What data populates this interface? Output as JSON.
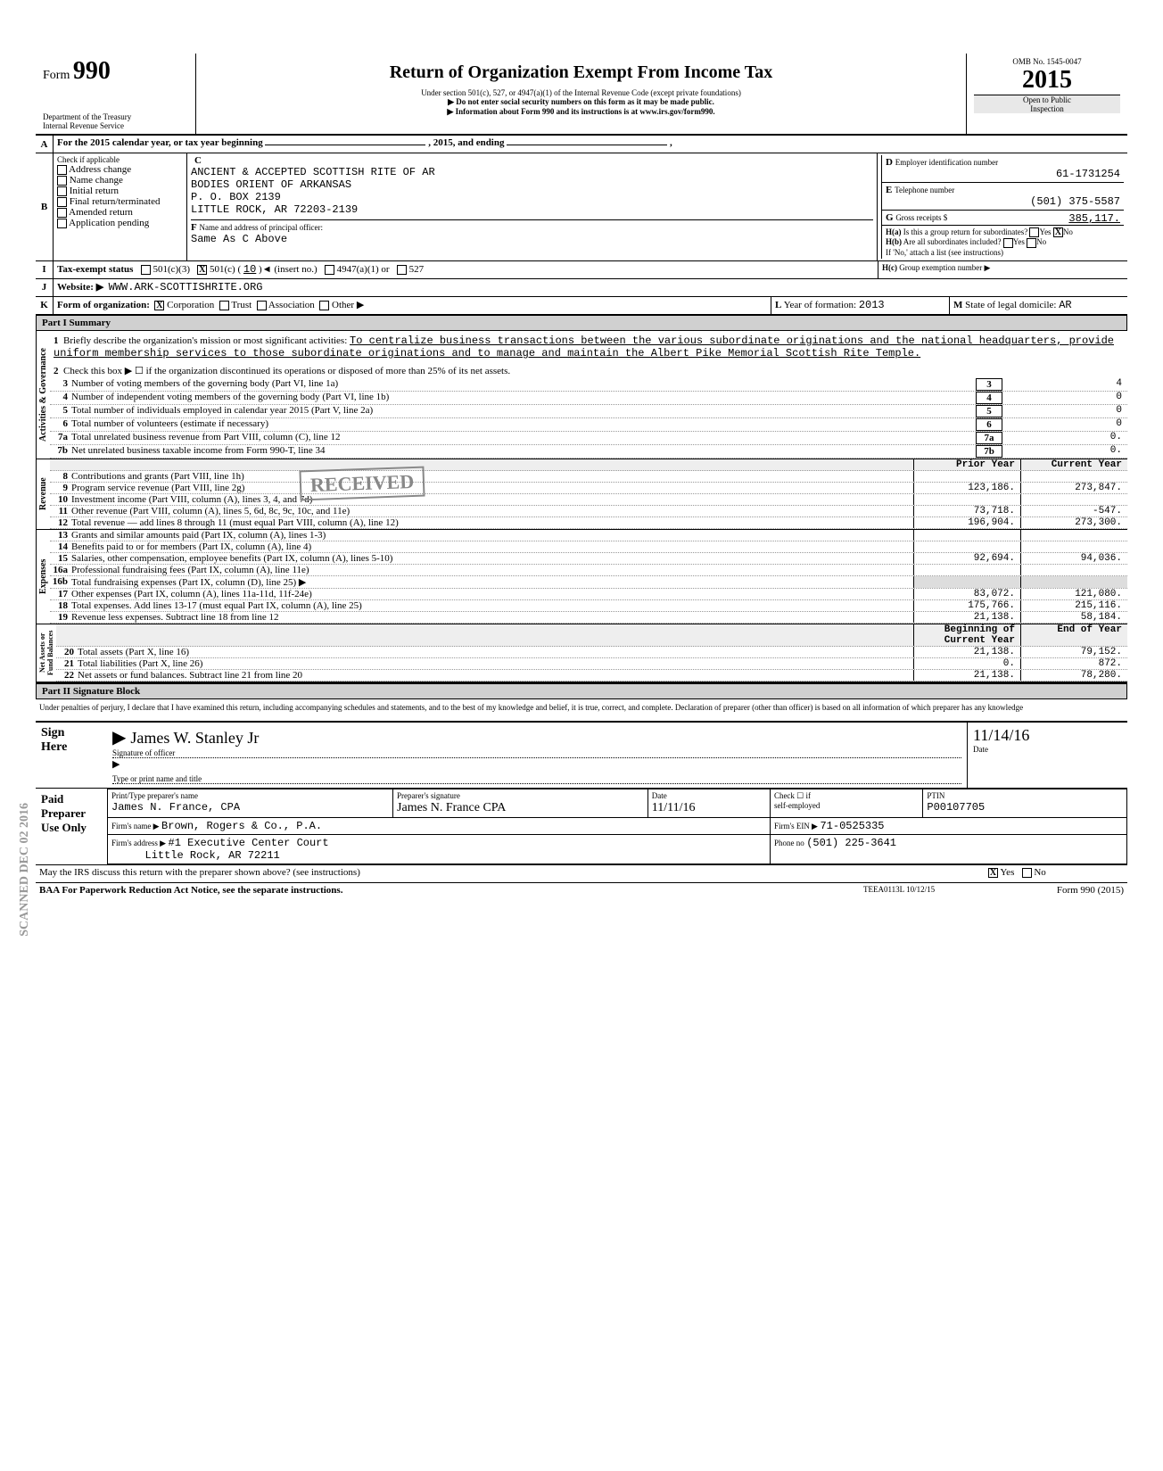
{
  "form": {
    "number": "990",
    "label": "Form",
    "omb": "OMB No. 1545-0047",
    "year": "2015",
    "title": "Return of Organization Exempt From Income Tax",
    "subtitle": "Under section 501(c), 527, or 4947(a)(1) of the Internal Revenue Code (except private foundations)",
    "note1": "▶ Do not enter social security numbers on this form as it may be made public.",
    "note2": "▶ Information about Form 990 and its instructions is at www.irs.gov/form990.",
    "dept": "Department of the Treasury\nInternal Revenue Service",
    "inspection": "Open to Public\nInspection"
  },
  "A": {
    "text": "For the 2015 calendar year, or tax year beginning",
    "mid": ", 2015, and ending",
    "end": ","
  },
  "B": {
    "label": "Check if applicable",
    "items": [
      "Address change",
      "Name change",
      "Initial return",
      "Final return/terminated",
      "Amended return",
      "Application pending"
    ]
  },
  "C": {
    "name1": "ANCIENT & ACCEPTED SCOTTISH RITE OF AR",
    "name2": "BODIES ORIENT OF ARKANSAS",
    "addr1": "P. O. BOX 2139",
    "addr2": "LITTLE ROCK, AR 72203-2139"
  },
  "D": {
    "label": "Employer identification number",
    "value": "61-1731254"
  },
  "E": {
    "label": "Telephone number",
    "value": "(501) 375-5587"
  },
  "F": {
    "label": "Name and address of principal officer:",
    "value": "Same As C Above"
  },
  "G": {
    "label": "Gross receipts $",
    "value": "385,117."
  },
  "H": {
    "a_label": "Is this a group return for subordinates?",
    "a_yes": false,
    "a_no": true,
    "b_label": "Are all subordinates included?",
    "b_note": "If 'No,' attach a list (see instructions)",
    "c_label": "Group exemption number ▶"
  },
  "I": {
    "label": "Tax-exempt status",
    "c3": false,
    "c_other": true,
    "c_num": "10",
    "insert": "(insert no.)",
    "a4947": "4947(a)(1) or",
    "s527": "527"
  },
  "J": {
    "label": "Website: ▶",
    "value": "WWW.ARK-SCOTTISHRITE.ORG"
  },
  "K": {
    "label": "Form of organization:",
    "corp": true,
    "trust": false,
    "assoc": false,
    "other": "Other ▶",
    "L_label": "Year of formation:",
    "L_value": "2013",
    "M_label": "State of legal domicile:",
    "M_value": "AR"
  },
  "part1": {
    "title": "Part I   Summary",
    "mission_label": "Briefly describe the organization's mission or most significant activities:",
    "mission": "To centralize business transactions between the various subordinate originations and the national headquarters, provide uniform  membership services to those subordinate originations  and to manage and maintain the Albert Pike Memorial Scottish Rite Temple.",
    "line2": "Check this box ▶  ☐  if the organization discontinued its operations or disposed of more than 25% of its net assets.",
    "lines": {
      "3": {
        "txt": "Number of voting members of the governing body (Part VI, line 1a)",
        "val": "4"
      },
      "4": {
        "txt": "Number of independent voting members of the governing body (Part VI, line 1b)",
        "val": "0"
      },
      "5": {
        "txt": "Total number of individuals employed in calendar year 2015 (Part V, line 2a)",
        "val": "0"
      },
      "6": {
        "txt": "Total number of volunteers (estimate if necessary)",
        "val": "0"
      },
      "7a": {
        "txt": "Total unrelated business revenue from Part VIII, column (C), line 12",
        "val": "0."
      },
      "7b": {
        "txt": "Net unrelated business taxable income from Form 990-T, line 34",
        "val": "0."
      }
    },
    "col_headers": {
      "prior": "Prior Year",
      "current": "Current Year"
    },
    "rev": {
      "8": {
        "txt": "Contributions and grants (Part VIII, line 1h)",
        "prior": "",
        "current": ""
      },
      "9": {
        "txt": "Program service revenue (Part VIII, line 2g)",
        "prior": "123,186.",
        "current": "273,847."
      },
      "10": {
        "txt": "Investment income (Part VIII, column (A), lines 3, 4, and 7d)",
        "prior": "",
        "current": ""
      },
      "11": {
        "txt": "Other revenue (Part VIII, column (A), lines 5, 6d, 8c, 9c, 10c, and 11e)",
        "prior": "73,718.",
        "current": "-547."
      },
      "12": {
        "txt": "Total revenue — add lines 8 through 11 (must equal Part VIII, column (A), line 12)",
        "prior": "196,904.",
        "current": "273,300."
      }
    },
    "exp": {
      "13": {
        "txt": "Grants and similar amounts paid (Part IX, column (A), lines 1-3)",
        "prior": "",
        "current": ""
      },
      "14": {
        "txt": "Benefits paid to or for members (Part IX, column (A), line 4)",
        "prior": "",
        "current": ""
      },
      "15": {
        "txt": "Salaries, other compensation, employee benefits (Part IX, column (A), lines 5-10)",
        "prior": "92,694.",
        "current": "94,036."
      },
      "16a": {
        "txt": "Professional fundraising fees (Part IX, column (A), line 11e)",
        "prior": "",
        "current": ""
      },
      "16b": {
        "txt": "Total fundraising expenses (Part IX, column (D), line 25) ▶",
        "prior": "",
        "current": ""
      },
      "17": {
        "txt": "Other expenses (Part IX, column (A), lines 11a-11d, 11f-24e)",
        "prior": "83,072.",
        "current": "121,080."
      },
      "18": {
        "txt": "Total expenses. Add lines 13-17 (must equal Part IX, column (A), line 25)",
        "prior": "175,766.",
        "current": "215,116."
      },
      "19": {
        "txt": "Revenue less expenses. Subtract line 18 from line 12",
        "prior": "21,138.",
        "current": "58,184."
      }
    },
    "bal_headers": {
      "begin": "Beginning of Current Year",
      "end": "End of Year"
    },
    "bal": {
      "20": {
        "txt": "Total assets (Part X, line 16)",
        "begin": "21,138.",
        "end": "79,152."
      },
      "21": {
        "txt": "Total liabilities (Part X, line 26)",
        "begin": "0.",
        "end": "872."
      },
      "22": {
        "txt": "Net assets or fund balances. Subtract line 21 from line 20",
        "begin": "21,138.",
        "end": "78,280."
      }
    },
    "sidelabels": {
      "gov": "Activities & Governance",
      "rev": "Revenue",
      "exp": "Expenses",
      "bal": "Net Assets or\nFund Balances"
    },
    "stamp": "RECEIVED",
    "side_stamp": "SCANNED DEC 02 2016"
  },
  "part2": {
    "title": "Part II   Signature Block",
    "decl": "Under penalties of perjury, I declare that I have examined this return, including accompanying schedules and statements, and to the best of my knowledge and belief, it is true, correct, and complete. Declaration of preparer (other than officer) is based on all information of which preparer has any knowledge"
  },
  "sign": {
    "here": "Sign\nHere",
    "sig_label": "Signature of officer",
    "sig_value": "James W. Stanley Jr",
    "date_label": "Date",
    "date_value": "11/14/16",
    "type_label": "Type or print name and title"
  },
  "preparer": {
    "label": "Paid\nPreparer\nUse Only",
    "name_label": "Print/Type preparer's name",
    "name": "James N. France, CPA",
    "sig_label": "Preparer's signature",
    "sig": "James N. France CPA",
    "date_label": "Date",
    "date": "11/11/16",
    "check_label": "Check ☐ if\nself-employed",
    "ptin_label": "PTIN",
    "ptin": "P00107705",
    "firm_label": "Firm's name ▶",
    "firm": "Brown, Rogers & Co., P.A.",
    "addr_label": "Firm's address ▶",
    "addr1": "#1 Executive Center Court",
    "addr2": "Little Rock, AR 72211",
    "ein_label": "Firm's EIN ▶",
    "ein": "71-0525335",
    "phone_label": "Phone no",
    "phone": "(501) 225-3641"
  },
  "footer": {
    "discuss": "May the IRS discuss this return with the preparer shown above? (see instructions)",
    "discuss_yes": true,
    "baa": "BAA  For Paperwork Reduction Act Notice, see the separate instructions.",
    "code": "TEEA0113L 10/12/15",
    "form_ref": "Form 990 (2015)"
  }
}
